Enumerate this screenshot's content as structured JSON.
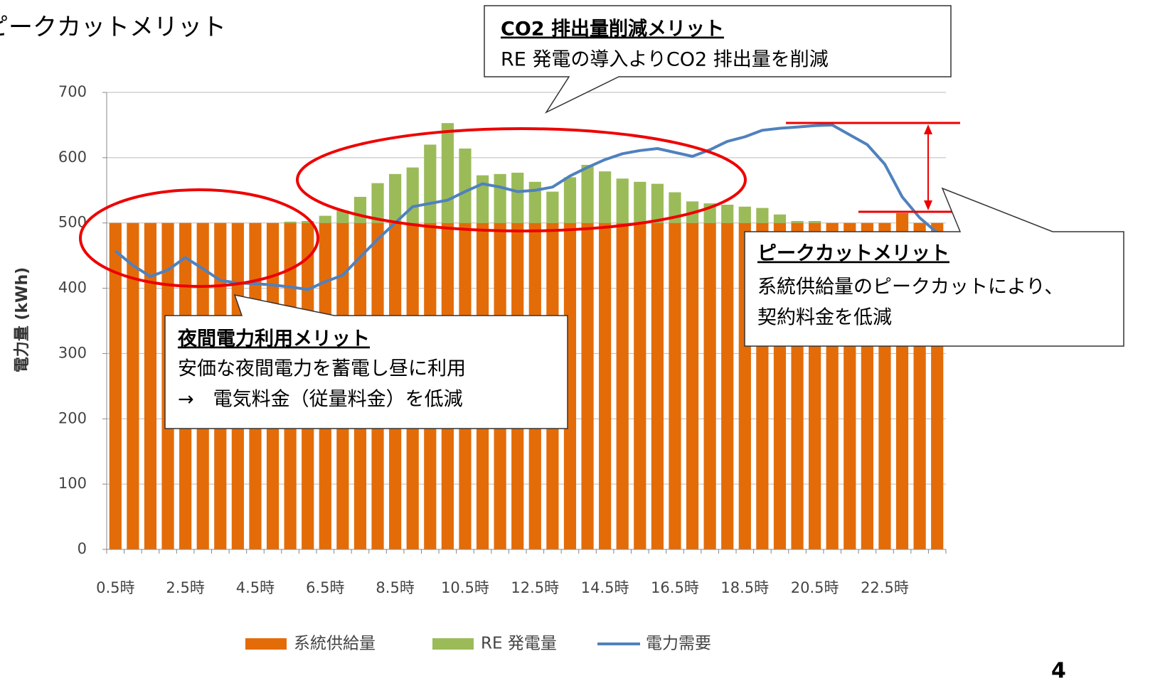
{
  "page_title": "ピークカットメリット",
  "page_number": "4",
  "chart_data": {
    "type": "bar",
    "stacked": true,
    "y_label": "電力量 (kWh)",
    "categories": [
      "0.5時",
      null,
      null,
      null,
      "2.5時",
      null,
      null,
      null,
      "4.5時",
      null,
      null,
      null,
      "6.5時",
      null,
      null,
      null,
      "8.5時",
      null,
      null,
      null,
      "10.5時",
      null,
      null,
      null,
      "12.5時",
      null,
      null,
      null,
      "14.5時",
      null,
      null,
      null,
      "16.5時",
      null,
      null,
      null,
      "18.5時",
      null,
      null,
      null,
      "20.5時",
      null,
      null,
      null,
      "22.5時",
      null,
      null,
      null
    ],
    "series": [
      {
        "name": "系統供給量",
        "type": "bar",
        "color": "#e36c09",
        "values": [
          500,
          500,
          500,
          500,
          500,
          500,
          500,
          500,
          500,
          500,
          500,
          500,
          500,
          500,
          500,
          500,
          500,
          500,
          500,
          500,
          500,
          500,
          500,
          500,
          500,
          500,
          500,
          500,
          500,
          500,
          500,
          500,
          500,
          500,
          500,
          500,
          500,
          500,
          500,
          500,
          500,
          500,
          500,
          500,
          500,
          515,
          500,
          500
        ]
      },
      {
        "name": "RE 発電量",
        "type": "bar",
        "color": "#9bbb59",
        "values": [
          0,
          0,
          0,
          0,
          0,
          0,
          0,
          0,
          0,
          0,
          2,
          3,
          11,
          19,
          40,
          61,
          75,
          85,
          120,
          153,
          114,
          73,
          75,
          77,
          63,
          48,
          70,
          89,
          79,
          68,
          63,
          60,
          47,
          33,
          30,
          28,
          25,
          23,
          13,
          3,
          3,
          0,
          0,
          0,
          0,
          0,
          0,
          0
        ]
      },
      {
        "name": "電力需要",
        "type": "line",
        "color": "#4f81bd",
        "values": [
          457,
          435,
          418,
          428,
          447,
          430,
          412,
          408,
          407,
          405,
          402,
          398,
          410,
          420,
          448,
          475,
          500,
          525,
          530,
          535,
          548,
          560,
          555,
          548,
          550,
          555,
          572,
          585,
          597,
          606,
          611,
          614,
          608,
          602,
          612,
          625,
          632,
          642,
          645,
          647,
          649,
          650,
          635,
          620,
          590,
          540,
          508,
          485
        ]
      }
    ],
    "ylim": [
      0,
      700
    ],
    "yticks": [
      0,
      100,
      200,
      300,
      400,
      500,
      600,
      700
    ],
    "grid": true
  },
  "annotations": [
    {
      "title": "CO2 排出量削減メリット",
      "lines": [
        "RE 発電の導入よりCO2 排出量を削減"
      ]
    },
    {
      "title": "夜間電力利用メリット",
      "lines": [
        "安価な夜間電力を蓄電し昼に利用",
        "→　電気料金（従量料金）を低減"
      ]
    },
    {
      "title": "ピークカットメリット",
      "lines": [
        "系統供給量のピークカットにより、",
        "契約料金を低減"
      ]
    }
  ]
}
